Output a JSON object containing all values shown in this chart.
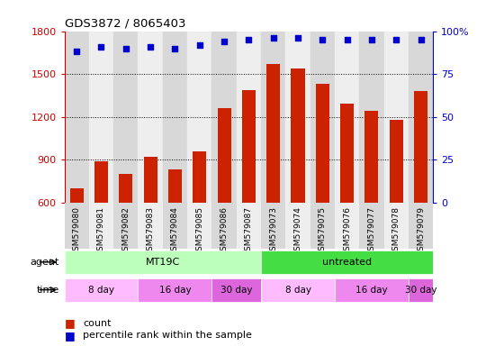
{
  "title": "GDS3872 / 8065403",
  "samples": [
    "GSM579080",
    "GSM579081",
    "GSM579082",
    "GSM579083",
    "GSM579084",
    "GSM579085",
    "GSM579086",
    "GSM579087",
    "GSM579073",
    "GSM579074",
    "GSM579075",
    "GSM579076",
    "GSM579077",
    "GSM579078",
    "GSM579079"
  ],
  "counts": [
    700,
    890,
    800,
    920,
    830,
    960,
    1260,
    1390,
    1570,
    1540,
    1430,
    1290,
    1240,
    1180,
    1380
  ],
  "percentiles": [
    88,
    91,
    90,
    91,
    90,
    92,
    94,
    95,
    96,
    96,
    95,
    95,
    95,
    95,
    95
  ],
  "ylim_left": [
    600,
    1800
  ],
  "ylim_right": [
    0,
    100
  ],
  "yticks_left": [
    600,
    900,
    1200,
    1500,
    1800
  ],
  "yticks_right": [
    0,
    25,
    50,
    75,
    100
  ],
  "bar_color": "#cc2200",
  "dot_color": "#0000cc",
  "background_color": "#ffffff",
  "agent_groups": [
    {
      "label": "MT19C",
      "start": 0,
      "end": 8,
      "color": "#bbffbb"
    },
    {
      "label": "untreated",
      "start": 8,
      "end": 15,
      "color": "#44dd44"
    }
  ],
  "time_groups": [
    {
      "label": "8 day",
      "start": 0,
      "end": 3,
      "color": "#ffbbff"
    },
    {
      "label": "16 day",
      "start": 3,
      "end": 6,
      "color": "#ee88ee"
    },
    {
      "label": "30 day",
      "start": 6,
      "end": 8,
      "color": "#dd66dd"
    },
    {
      "label": "8 day",
      "start": 8,
      "end": 11,
      "color": "#ffbbff"
    },
    {
      "label": "16 day",
      "start": 11,
      "end": 14,
      "color": "#ee88ee"
    },
    {
      "label": "30 day",
      "start": 14,
      "end": 15,
      "color": "#dd66dd"
    }
  ],
  "legend_count_label": "count",
  "legend_pct_label": "percentile rank within the sample",
  "agent_label": "agent",
  "time_label": "time",
  "tick_color_left": "#cc0000",
  "tick_color_right": "#0000cc",
  "grid_color": "#000000",
  "alt_bg_colors": [
    "#d8d8d8",
    "#eeeeee"
  ]
}
